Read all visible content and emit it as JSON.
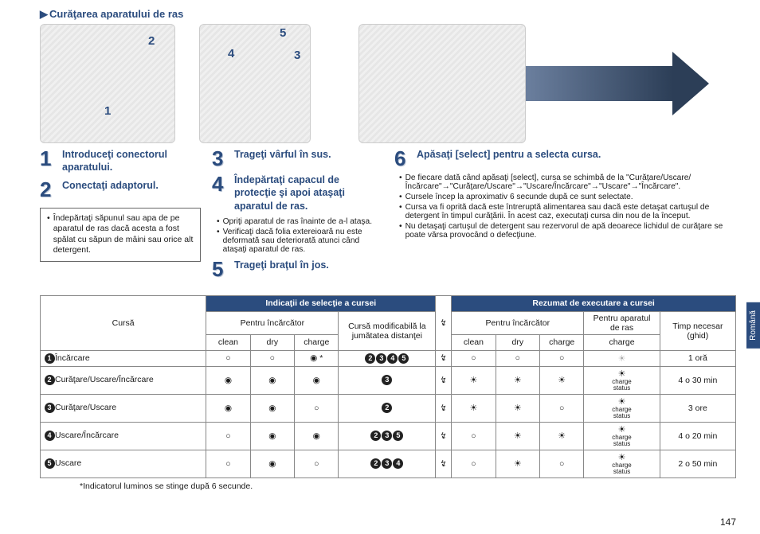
{
  "title": "Curăţarea aparatului de ras",
  "callouts": {
    "c1": "1",
    "c2": "2",
    "c3": "3",
    "c4": "4",
    "c5": "5"
  },
  "steps": {
    "s1": {
      "num": "1",
      "title": "Introduceţi conectorul aparatului."
    },
    "s2": {
      "num": "2",
      "title": "Conectaţi adaptorul."
    },
    "s3": {
      "num": "3",
      "title": "Trageţi vârful în sus."
    },
    "s4": {
      "num": "4",
      "title": "Îndepărtaţi capacul de protecţie şi apoi ataşaţi aparatul de ras.",
      "b1": "Opriţi aparatul de ras înainte de a-l ataşa.",
      "b2": "Verificaţi dacă folia extereioară nu este deformată sau deteriorată atunci când ataşaţi aparatul de ras."
    },
    "s5": {
      "num": "5",
      "title": "Trageţi braţul în jos."
    },
    "s6": {
      "num": "6",
      "title": "Apăsaţi [select] pentru a selecta cursa.",
      "b1": "De fiecare dată când apăsaţi [select], cursa se schimbă de la \"Curăţare/Uscare/Încărcare\"→\"Curăţare/Uscare\"→\"Uscare/Încărcare\"→\"Uscare\"→\"Încărcare\".",
      "b2": "Cursele încep la aproximativ 6 secunde după ce sunt selectate.",
      "b3": "Cursa va fi oprită dacă este întreruptă alimentarea sau dacă este detaşat cartuşul de detergent în timpul curăţării. În acest caz, executaţi cursa din nou de la început.",
      "b4": "Nu detaşaţi cartuşul de detergent sau rezervorul de apă deoarece lichidul de curăţare se poate vărsa provocând o defecţiune."
    }
  },
  "infobox": "Îndepărtaţi săpunul sau apa de pe aparatul de ras dacă acesta a fost spălat cu săpun de mâini sau orice alt detergent.",
  "lang": "Română",
  "table": {
    "hdr_sel": "Indicaţii de selecţie a cursei",
    "hdr_sum": "Rezumat de executare a cursei",
    "col_cursa": "Cursă",
    "col_inc": "Pentru încărcător",
    "col_mod": "Cursă modificabilă la jumătatea distanţei",
    "col_ras": "Pentru aparatul de ras",
    "col_timp": "Timp necesar (ghid)",
    "sub_clean": "clean",
    "sub_dry": "dry",
    "sub_charge": "charge",
    "rows": [
      {
        "n": "1",
        "label": "Încărcare",
        "sel": [
          "○",
          "○",
          "◉ *"
        ],
        "mod": "❷❸❹❺",
        "bolt": "⯈",
        "sum": [
          "○",
          "○",
          "○"
        ],
        "ras": "sun-off",
        "time": "1 oră"
      },
      {
        "n": "2",
        "label": "Curăţare/Uscare/Încărcare",
        "sel": [
          "◉",
          "◉",
          "◉"
        ],
        "mod": "❸",
        "bolt": "⯈",
        "sum": [
          "☼",
          "☼",
          "☼"
        ],
        "ras": "sun-on",
        "time": "4 o 30 min"
      },
      {
        "n": "3",
        "label": "Curăţare/Uscare",
        "sel": [
          "◉",
          "◉",
          "○"
        ],
        "mod": "❷",
        "bolt": "⯈",
        "sum": [
          "☼",
          "☼",
          "○"
        ],
        "ras": "sun-on",
        "time": "3 ore"
      },
      {
        "n": "4",
        "label": "Uscare/Încărcare",
        "sel": [
          "○",
          "◉",
          "◉"
        ],
        "mod": "❷❸❺",
        "bolt": "⯈",
        "sum": [
          "○",
          "☼",
          "☼"
        ],
        "ras": "sun-on",
        "time": "4 o 20 min"
      },
      {
        "n": "5",
        "label": "Uscare",
        "sel": [
          "○",
          "◉",
          "○"
        ],
        "mod": "❷❸❹",
        "bolt": "⯈",
        "sum": [
          "○",
          "☼",
          "○"
        ],
        "ras": "sun-on",
        "time": "2 o 50 min"
      }
    ]
  },
  "footnote": "*Indicatorul luminos se stinge după 6 secunde.",
  "page": "147"
}
